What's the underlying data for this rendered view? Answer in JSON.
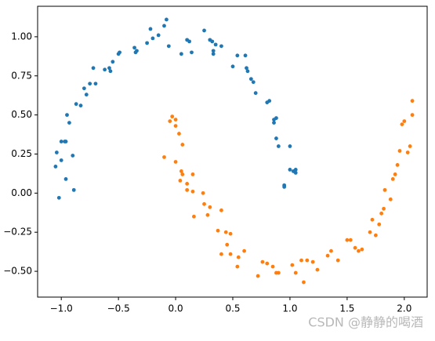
{
  "chart_data": {
    "type": "scatter",
    "xlim": [
      -1.207,
      2.2
    ],
    "ylim": [
      -0.665,
      1.195
    ],
    "xticks": [
      {
        "value": -1,
        "label": "−1.0"
      },
      {
        "value": -0.5,
        "label": "−0.5"
      },
      {
        "value": 0,
        "label": "0.0"
      },
      {
        "value": 0.5,
        "label": "0.5"
      },
      {
        "value": 1,
        "label": "1.0"
      },
      {
        "value": 1.5,
        "label": "1.5"
      },
      {
        "value": 2,
        "label": "2.0"
      }
    ],
    "yticks": [
      {
        "value": -0.5,
        "label": "−0.50"
      },
      {
        "value": -0.25,
        "label": "−0.25"
      },
      {
        "value": 0,
        "label": "0.00"
      },
      {
        "value": 0.25,
        "label": "0.25"
      },
      {
        "value": 0.5,
        "label": "0.50"
      },
      {
        "value": 0.75,
        "label": "0.75"
      },
      {
        "value": 1,
        "label": "1.00"
      }
    ],
    "series": [
      {
        "color": "#1f77b4",
        "x": [
          -1.05,
          -1.04,
          -1.02,
          -1.0,
          -1.0,
          -0.97,
          -0.96,
          -0.95,
          -0.96,
          -0.93,
          -0.9,
          -0.89,
          -0.87,
          -0.83,
          -0.8,
          -0.78,
          -0.75,
          -0.72,
          -0.7,
          -0.62,
          -0.58,
          -0.57,
          -0.55,
          -0.5,
          -0.49,
          -0.36,
          -0.35,
          -0.34,
          -0.25,
          -0.22,
          -0.2,
          -0.15,
          -0.1,
          -0.08,
          -0.06,
          0.05,
          0.1,
          0.12,
          0.14,
          0.25,
          0.3,
          0.32,
          0.33,
          0.33,
          0.35,
          0.4,
          0.5,
          0.54,
          0.61,
          0.62,
          0.63,
          0.66,
          0.68,
          0.7,
          0.8,
          0.82,
          0.86,
          0.88,
          0.86,
          0.88,
          0.9,
          0.95,
          0.95,
          1.0,
          1.0,
          1.03,
          1.05,
          1.05
        ],
        "values": [
          0.17,
          0.26,
          -0.03,
          0.21,
          0.33,
          0.33,
          0.09,
          0.5,
          0.33,
          0.45,
          0.24,
          0.02,
          0.57,
          0.56,
          0.67,
          0.63,
          0.7,
          0.8,
          0.7,
          0.79,
          0.8,
          0.78,
          0.84,
          0.89,
          0.9,
          0.93,
          0.9,
          0.91,
          0.96,
          1.05,
          0.99,
          1.01,
          1.07,
          1.11,
          0.94,
          0.89,
          0.98,
          0.97,
          0.9,
          1.04,
          0.98,
          0.97,
          0.91,
          0.89,
          0.95,
          0.94,
          0.81,
          0.88,
          0.88,
          0.8,
          0.78,
          0.73,
          0.71,
          0.64,
          0.58,
          0.59,
          0.47,
          0.48,
          0.45,
          0.35,
          0.3,
          0.05,
          0.04,
          0.3,
          0.15,
          0.14,
          0.13,
          0.15
        ]
      },
      {
        "color": "#ff7f0e",
        "x": [
          -0.1,
          -0.05,
          -0.03,
          0.0,
          0.0,
          0.03,
          0.06,
          0.0,
          0.05,
          0.06,
          0.04,
          0.1,
          0.1,
          0.15,
          0.15,
          0.16,
          0.24,
          0.25,
          0.28,
          0.3,
          0.37,
          0.4,
          0.4,
          0.44,
          0.48,
          0.45,
          0.48,
          0.54,
          0.55,
          0.6,
          0.72,
          0.76,
          0.8,
          0.85,
          0.9,
          0.88,
          1.02,
          1.05,
          1.1,
          1.12,
          1.15,
          1.2,
          1.24,
          1.33,
          1.36,
          1.42,
          1.5,
          1.53,
          1.57,
          1.6,
          1.63,
          1.7,
          1.72,
          1.75,
          1.78,
          1.8,
          1.82,
          1.83,
          1.88,
          1.9,
          1.92,
          1.94,
          1.96,
          1.98,
          2.0,
          2.03,
          2.05,
          2.07,
          2.07
        ],
        "values": [
          0.23,
          0.46,
          0.49,
          0.47,
          0.43,
          0.38,
          0.31,
          0.2,
          0.14,
          0.12,
          0.08,
          0.06,
          0.02,
          0.12,
          0.01,
          -0.15,
          0.0,
          -0.07,
          -0.14,
          -0.09,
          -0.24,
          -0.39,
          -0.11,
          -0.25,
          -0.26,
          -0.33,
          -0.39,
          -0.47,
          -0.41,
          -0.37,
          -0.53,
          -0.44,
          -0.45,
          -0.47,
          -0.51,
          -0.51,
          -0.46,
          -0.51,
          -0.43,
          -0.57,
          -0.43,
          -0.44,
          -0.49,
          -0.4,
          -0.37,
          -0.43,
          -0.3,
          -0.3,
          -0.35,
          -0.37,
          -0.36,
          -0.25,
          -0.17,
          -0.27,
          -0.2,
          -0.13,
          -0.1,
          0.02,
          -0.04,
          0.09,
          0.12,
          0.18,
          0.27,
          0.44,
          0.46,
          0.26,
          0.3,
          0.5,
          0.59
        ]
      }
    ],
    "annotations": [
      "CSDN @静静的喝酒"
    ]
  }
}
